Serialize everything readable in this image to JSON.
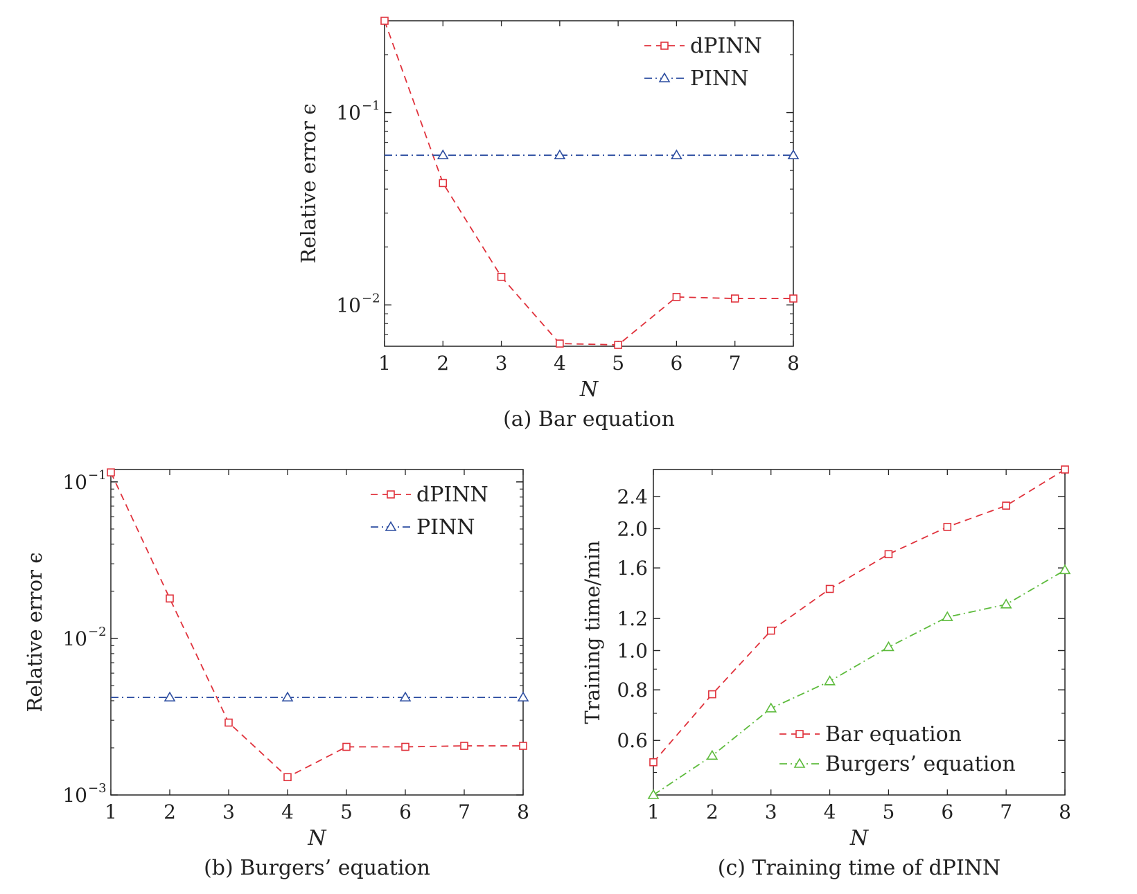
{
  "colors": {
    "dpinn": "#e0323c",
    "pinn": "#2c4da0",
    "burgers": "#5dbb3c",
    "axis": "#222222"
  },
  "chart_data": [
    {
      "id": "a",
      "type": "line",
      "scale_y": "log",
      "caption": "(a) Bar equation",
      "xlabel": "N",
      "ylabel": "Relative error ϵ",
      "xlim": [
        1,
        8
      ],
      "ylim": [
        0.0061,
        0.3
      ],
      "x_ticks": [
        "1",
        "2",
        "3",
        "4",
        "5",
        "6",
        "7",
        "8"
      ],
      "y_ticks": [
        {
          "value": 0.1,
          "base": "10",
          "exp": "−1"
        },
        {
          "value": 0.01,
          "base": "10",
          "exp": "−2"
        }
      ],
      "legend_position": "top-right",
      "series": [
        {
          "name": "dPINN",
          "marker": "square",
          "dash": "dashed",
          "color": "#e0323c",
          "x": [
            1,
            2,
            3,
            4,
            5,
            6,
            7,
            8
          ],
          "y": [
            0.3,
            0.043,
            0.014,
            0.0063,
            0.0062,
            0.011,
            0.0108,
            0.0108
          ]
        },
        {
          "name": "PINN",
          "marker": "triangle",
          "dash": "dashdot",
          "color": "#2c4da0",
          "x": [
            2,
            4,
            6,
            8
          ],
          "y": [
            0.06,
            0.06,
            0.06,
            0.06
          ],
          "line_x": [
            1,
            8
          ]
        }
      ]
    },
    {
      "id": "b",
      "type": "line",
      "scale_y": "log",
      "caption": "(b) Burgers’ equation",
      "xlabel": "N",
      "ylabel": "Relative error ϵ",
      "xlim": [
        1,
        8
      ],
      "ylim": [
        0.001,
        0.12
      ],
      "x_ticks": [
        "1",
        "2",
        "3",
        "4",
        "5",
        "6",
        "7",
        "8"
      ],
      "y_ticks": [
        {
          "value": 0.1,
          "base": "10",
          "exp": "−1"
        },
        {
          "value": 0.01,
          "base": "10",
          "exp": "−2"
        },
        {
          "value": 0.001,
          "base": "10",
          "exp": "−3"
        }
      ],
      "legend_position": "top-right",
      "series": [
        {
          "name": "dPINN",
          "marker": "square",
          "dash": "dashed",
          "color": "#e0323c",
          "x": [
            1,
            2,
            3,
            4,
            5,
            6,
            7,
            8
          ],
          "y": [
            0.115,
            0.018,
            0.0029,
            0.0013,
            0.00203,
            0.00203,
            0.00206,
            0.00206
          ]
        },
        {
          "name": "PINN",
          "marker": "triangle",
          "dash": "dashdot",
          "color": "#2c4da0",
          "x": [
            2,
            4,
            6,
            8
          ],
          "y": [
            0.0042,
            0.0042,
            0.0042,
            0.0042
          ],
          "line_x": [
            1,
            8
          ]
        }
      ]
    },
    {
      "id": "c",
      "type": "line",
      "scale_y": "log",
      "caption": "(c) Training time of dPINN",
      "xlabel": "N",
      "ylabel": "Training time/min",
      "xlim": [
        1,
        8
      ],
      "ylim": [
        0.44,
        2.8
      ],
      "x_ticks": [
        "1",
        "2",
        "3",
        "4",
        "5",
        "6",
        "7",
        "8"
      ],
      "y_ticks": [
        {
          "value": 0.6,
          "label": "0.6"
        },
        {
          "value": 0.8,
          "label": "0.8"
        },
        {
          "value": 1.0,
          "label": "1.0"
        },
        {
          "value": 1.2,
          "label": "1.2"
        },
        {
          "value": 1.6,
          "label": "1.6"
        },
        {
          "value": 2.0,
          "label": "2.0"
        },
        {
          "value": 2.4,
          "label": "2.4"
        }
      ],
      "legend_position": "bottom-center",
      "series": [
        {
          "name": "Bar equation",
          "marker": "square",
          "dash": "dashed",
          "color": "#e0323c",
          "x": [
            1,
            2,
            3,
            4,
            5,
            6,
            7,
            8
          ],
          "y": [
            0.53,
            0.78,
            1.12,
            1.42,
            1.73,
            2.02,
            2.28,
            2.8
          ]
        },
        {
          "name": "Burgers’ equation",
          "marker": "triangle",
          "dash": "dashdot",
          "color": "#5dbb3c",
          "x": [
            1,
            2,
            3,
            4,
            5,
            6,
            7,
            8
          ],
          "y": [
            0.44,
            0.55,
            0.72,
            0.84,
            1.02,
            1.21,
            1.3,
            1.58
          ]
        }
      ]
    }
  ]
}
